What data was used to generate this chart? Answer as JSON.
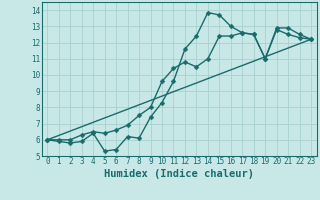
{
  "xlabel": "Humidex (Indice chaleur)",
  "background_color": "#c8e8e8",
  "grid_color": "#a8d0d0",
  "line_color": "#1a6b6b",
  "xlim": [
    -0.5,
    23.5
  ],
  "ylim": [
    5.0,
    14.5
  ],
  "xticks": [
    0,
    1,
    2,
    3,
    4,
    5,
    6,
    7,
    8,
    9,
    10,
    11,
    12,
    13,
    14,
    15,
    16,
    17,
    18,
    19,
    20,
    21,
    22,
    23
  ],
  "yticks": [
    5,
    6,
    7,
    8,
    9,
    10,
    11,
    12,
    13,
    14
  ],
  "line1_x": [
    0,
    1,
    2,
    3,
    4,
    5,
    6,
    7,
    8,
    9,
    10,
    11,
    12,
    13,
    14,
    15,
    16,
    17,
    18,
    19,
    20,
    21,
    22,
    23
  ],
  "line1_y": [
    6.0,
    5.9,
    5.8,
    5.9,
    6.4,
    5.3,
    5.4,
    6.2,
    6.1,
    7.4,
    8.3,
    9.6,
    11.6,
    12.4,
    13.85,
    13.7,
    13.0,
    12.6,
    12.5,
    11.0,
    12.8,
    12.5,
    12.3,
    12.2
  ],
  "line2_x": [
    0,
    1,
    2,
    3,
    4,
    5,
    6,
    7,
    8,
    9,
    10,
    11,
    12,
    13,
    14,
    15,
    16,
    17,
    18,
    19,
    20,
    21,
    22,
    23
  ],
  "line2_y": [
    6.0,
    6.0,
    6.0,
    6.3,
    6.5,
    6.4,
    6.6,
    6.9,
    7.5,
    8.0,
    9.6,
    10.4,
    10.8,
    10.5,
    11.0,
    12.4,
    12.4,
    12.6,
    12.5,
    11.0,
    12.9,
    12.9,
    12.5,
    12.2
  ],
  "line3_x": [
    0,
    23
  ],
  "line3_y": [
    6.0,
    12.2
  ],
  "marker_size": 2.5,
  "linewidth": 1.0,
  "tick_fontsize": 5.5,
  "xlabel_fontsize": 7.5
}
